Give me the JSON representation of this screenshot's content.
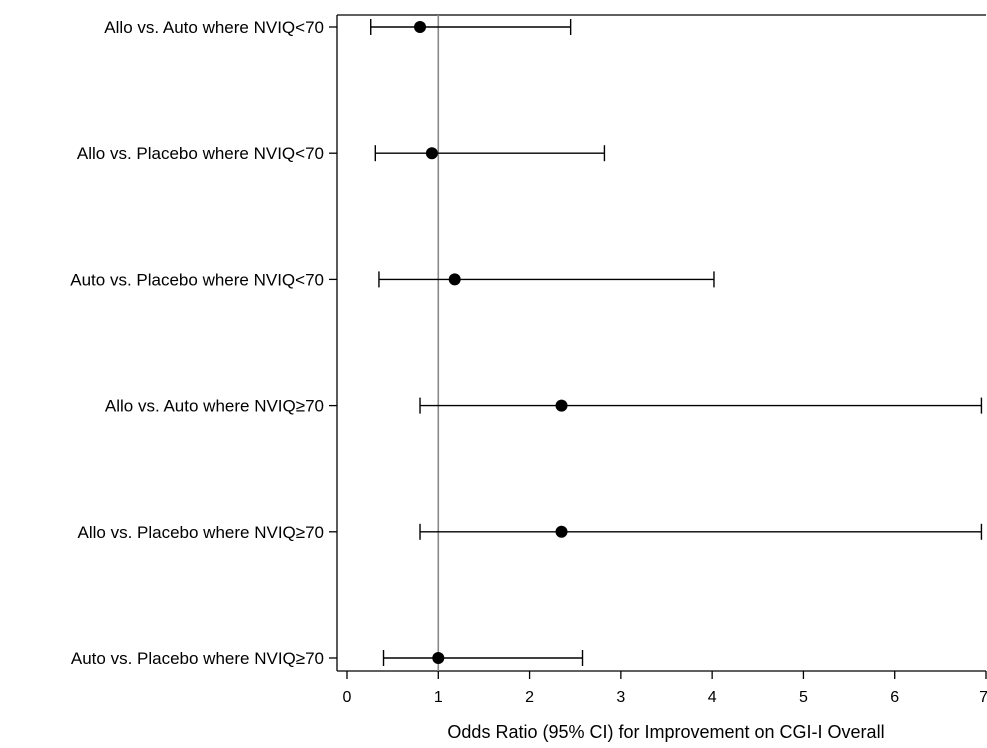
{
  "chart_data": {
    "type": "scatter",
    "subtype": "forest-plot",
    "title": "",
    "xlabel": "Odds Ratio (95% CI) for Improvement on CGI-I Overall",
    "ylabel": "",
    "xlim": [
      0,
      7
    ],
    "x_ticks": [
      "0",
      "1",
      "2",
      "3",
      "4",
      "5",
      "6",
      "7"
    ],
    "reference_line_x": 1,
    "grid": false,
    "legend": "none",
    "categories": [
      "Allo vs. Auto where NVIQ<70",
      "Allo vs. Placebo where NVIQ<70",
      "Auto vs. Placebo where NVIQ<70",
      "Allo vs. Auto where NVIQ≥70",
      "Allo vs. Placebo where NVIQ≥70",
      "Auto vs. Placebo where NVIQ≥70"
    ],
    "estimates": [
      0.8,
      0.93,
      1.18,
      2.35,
      2.35,
      1.0
    ],
    "ci_lower": [
      0.26,
      0.31,
      0.35,
      0.8,
      0.8,
      0.4
    ],
    "ci_upper": [
      2.45,
      2.82,
      4.02,
      6.95,
      6.95,
      2.58
    ],
    "colors": {
      "marker": "#000000",
      "ci": "#000000",
      "reference_line": "#888888",
      "axis": "#000000"
    }
  }
}
